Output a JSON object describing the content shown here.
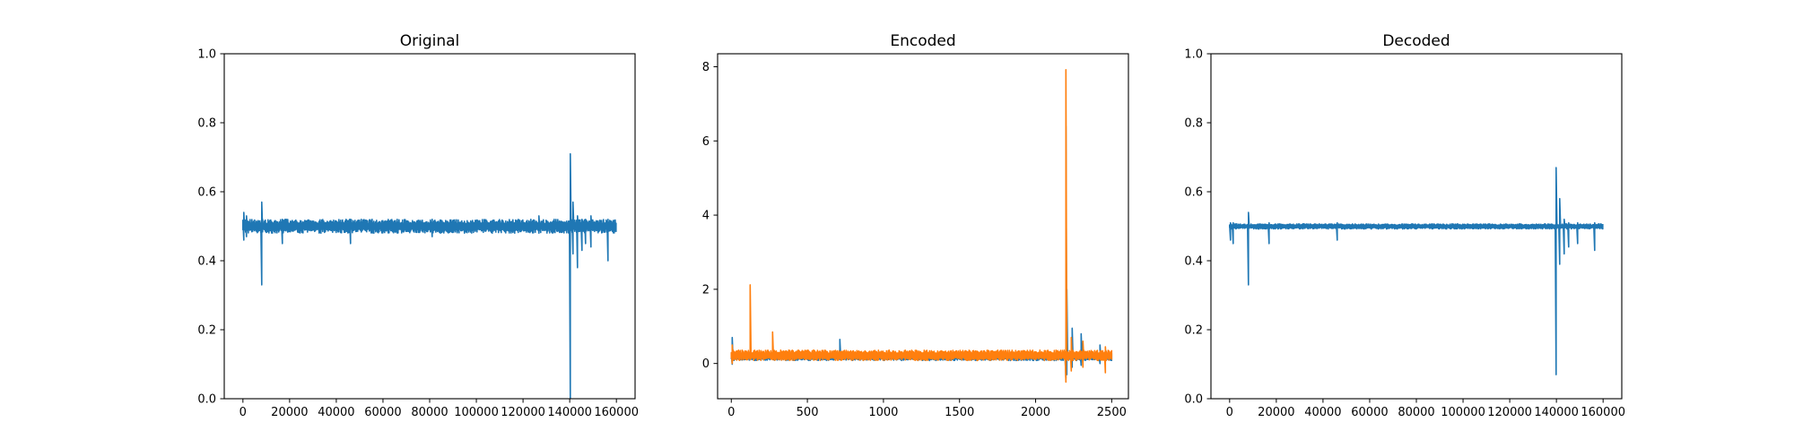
{
  "chart_data": [
    {
      "type": "line",
      "title": "Original",
      "xlim": [
        -8000,
        168000
      ],
      "ylim": [
        0,
        1
      ],
      "xticks": [
        {
          "value": 0,
          "label": "0"
        },
        {
          "value": 20000,
          "label": "20000"
        },
        {
          "value": 40000,
          "label": "40000"
        },
        {
          "value": 60000,
          "label": "60000"
        },
        {
          "value": 80000,
          "label": "80000"
        },
        {
          "value": 100000,
          "label": "100000"
        },
        {
          "value": 120000,
          "label": "120000"
        },
        {
          "value": 140000,
          "label": "140000"
        },
        {
          "value": 160000,
          "label": "160000"
        }
      ],
      "yticks": [
        {
          "value": 0,
          "label": "0.0"
        },
        {
          "value": 0.2,
          "label": "0.2"
        },
        {
          "value": 0.4,
          "label": "0.4"
        },
        {
          "value": 0.6,
          "label": "0.6"
        },
        {
          "value": 0.8,
          "label": "0.8"
        },
        {
          "value": 1.0,
          "label": "1.0"
        }
      ],
      "series": [
        {
          "color": "#1f77b4",
          "x_range": [
            0,
            160000
          ],
          "baseline": 0.5,
          "band_low": 0.48,
          "band_high": 0.52,
          "spikes": [
            {
              "x": 500,
              "low": 0.46,
              "high": 0.54
            },
            {
              "x": 1500,
              "low": 0.47,
              "high": 0.53
            },
            {
              "x": 8000,
              "low": 0.33,
              "high": 0.57
            },
            {
              "x": 17000,
              "low": 0.45,
              "high": 0.52
            },
            {
              "x": 46000,
              "low": 0.45,
              "high": 0.52
            },
            {
              "x": 81000,
              "low": 0.47,
              "high": 0.52
            },
            {
              "x": 127000,
              "low": 0.48,
              "high": 0.53
            },
            {
              "x": 140500,
              "low": 0.0,
              "high": 0.71
            },
            {
              "x": 141500,
              "low": 0.42,
              "high": 0.57
            },
            {
              "x": 143500,
              "low": 0.38,
              "high": 0.53
            },
            {
              "x": 145500,
              "low": 0.43,
              "high": 0.52
            },
            {
              "x": 147000,
              "low": 0.45,
              "high": 0.52
            },
            {
              "x": 149000,
              "low": 0.44,
              "high": 0.53
            },
            {
              "x": 156500,
              "low": 0.4,
              "high": 0.52
            }
          ]
        }
      ]
    },
    {
      "type": "line",
      "title": "Encoded",
      "xlim": [
        -90,
        2610
      ],
      "ylim": [
        -0.95,
        8.35
      ],
      "xticks": [
        {
          "value": 0,
          "label": "0"
        },
        {
          "value": 500,
          "label": "500"
        },
        {
          "value": 1000,
          "label": "1000"
        },
        {
          "value": 1500,
          "label": "1500"
        },
        {
          "value": 2000,
          "label": "2000"
        },
        {
          "value": 2500,
          "label": "2500"
        }
      ],
      "yticks": [
        {
          "value": 0,
          "label": "0"
        },
        {
          "value": 2,
          "label": "2"
        },
        {
          "value": 4,
          "label": "4"
        },
        {
          "value": 6,
          "label": "6"
        },
        {
          "value": 8,
          "label": "8"
        }
      ],
      "series": [
        {
          "color": "#1f77b4",
          "x_range": [
            0,
            2500
          ],
          "baseline": 0.17,
          "band_low": 0.08,
          "band_high": 0.28,
          "spikes": [
            {
              "x": 5,
              "low": -0.02,
              "high": 0.7
            },
            {
              "x": 710,
              "low": 0.1,
              "high": 0.65
            },
            {
              "x": 2198,
              "low": -0.4,
              "high": 6.4
            },
            {
              "x": 2202,
              "low": -0.3,
              "high": 2.0
            },
            {
              "x": 2240,
              "low": -0.1,
              "high": 0.95
            },
            {
              "x": 2300,
              "low": -0.05,
              "high": 0.8
            },
            {
              "x": 2420,
              "low": 0.0,
              "high": 0.5
            }
          ]
        },
        {
          "color": "#ff7f0e",
          "x_range": [
            0,
            2500
          ],
          "baseline": 0.22,
          "band_low": 0.08,
          "band_high": 0.36,
          "spikes": [
            {
              "x": 5,
              "low": 0.0,
              "high": 0.5
            },
            {
              "x": 125,
              "low": 0.1,
              "high": 2.12
            },
            {
              "x": 270,
              "low": 0.1,
              "high": 0.85
            },
            {
              "x": 2198,
              "low": -0.5,
              "high": 7.92
            },
            {
              "x": 2230,
              "low": -0.2,
              "high": 0.7
            },
            {
              "x": 2310,
              "low": -0.1,
              "high": 0.6
            },
            {
              "x": 2455,
              "low": -0.25,
              "high": 0.45
            }
          ]
        }
      ]
    },
    {
      "type": "line",
      "title": "Decoded",
      "xlim": [
        -8000,
        168000
      ],
      "ylim": [
        0,
        1
      ],
      "xticks": [
        {
          "value": 0,
          "label": "0"
        },
        {
          "value": 20000,
          "label": "20000"
        },
        {
          "value": 40000,
          "label": "40000"
        },
        {
          "value": 60000,
          "label": "60000"
        },
        {
          "value": 80000,
          "label": "80000"
        },
        {
          "value": 100000,
          "label": "100000"
        },
        {
          "value": 120000,
          "label": "120000"
        },
        {
          "value": 140000,
          "label": "140000"
        },
        {
          "value": 160000,
          "label": "160000"
        }
      ],
      "yticks": [
        {
          "value": 0,
          "label": "0.0"
        },
        {
          "value": 0.2,
          "label": "0.2"
        },
        {
          "value": 0.4,
          "label": "0.4"
        },
        {
          "value": 0.6,
          "label": "0.6"
        },
        {
          "value": 0.8,
          "label": "0.8"
        },
        {
          "value": 1.0,
          "label": "1.0"
        }
      ],
      "series": [
        {
          "color": "#1f77b4",
          "x_range": [
            0,
            160000
          ],
          "baseline": 0.5,
          "band_low": 0.492,
          "band_high": 0.507,
          "spikes": [
            {
              "x": 500,
              "low": 0.46,
              "high": 0.51
            },
            {
              "x": 1500,
              "low": 0.45,
              "high": 0.51
            },
            {
              "x": 8000,
              "low": 0.33,
              "high": 0.54
            },
            {
              "x": 17000,
              "low": 0.45,
              "high": 0.51
            },
            {
              "x": 46000,
              "low": 0.46,
              "high": 0.51
            },
            {
              "x": 140000,
              "low": 0.07,
              "high": 0.67
            },
            {
              "x": 141500,
              "low": 0.39,
              "high": 0.58
            },
            {
              "x": 143500,
              "low": 0.42,
              "high": 0.52
            },
            {
              "x": 145500,
              "low": 0.44,
              "high": 0.51
            },
            {
              "x": 149000,
              "low": 0.45,
              "high": 0.51
            },
            {
              "x": 156500,
              "low": 0.43,
              "high": 0.51
            }
          ]
        }
      ]
    }
  ]
}
